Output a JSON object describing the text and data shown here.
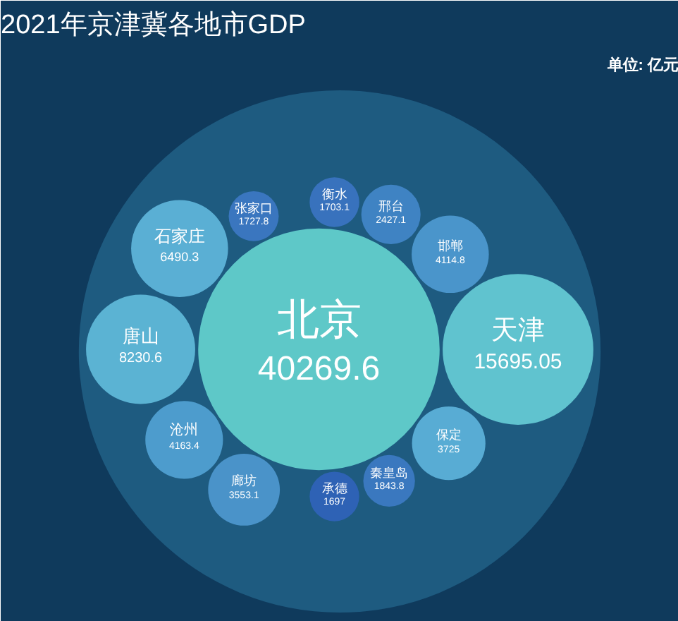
{
  "chart_data": {
    "type": "other",
    "title": "2021年京津冀各地市GDP",
    "annotations": [
      "单位: 亿元"
    ],
    "categories": [
      "北京",
      "天津",
      "唐山",
      "石家庄",
      "沧州",
      "邯郸",
      "保定",
      "廊坊",
      "邢台",
      "秦皇岛",
      "张家口",
      "衡水",
      "承德"
    ],
    "values": [
      40269.6,
      15695.05,
      8230.6,
      6490.3,
      4163.4,
      4114.8,
      3725,
      3553.1,
      2427.1,
      1843.8,
      1727.8,
      1703.1,
      1697
    ],
    "colors": [
      "#5ec8c8",
      "#60c3cf",
      "#5bb3d3",
      "#5aafd4",
      "#4d9ccd",
      "#4a95cb",
      "#58acd4",
      "#4a93c9",
      "#3f83c3",
      "#3a78bf",
      "#3a76bf",
      "#3872bd",
      "#2e62b5"
    ],
    "data_labels": true
  }
}
